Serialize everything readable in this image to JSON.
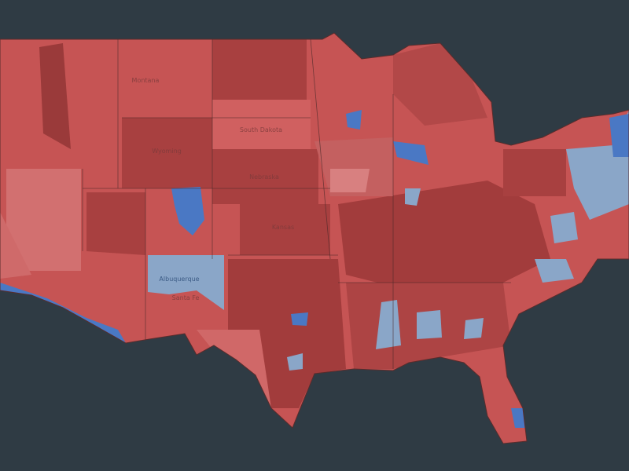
{
  "map": {
    "labels": [
      "Montana",
      "Wyoming",
      "South Dakota",
      "Nebraska",
      "Kansas",
      "Albuquerque",
      "Santa Fe"
    ]
  }
}
